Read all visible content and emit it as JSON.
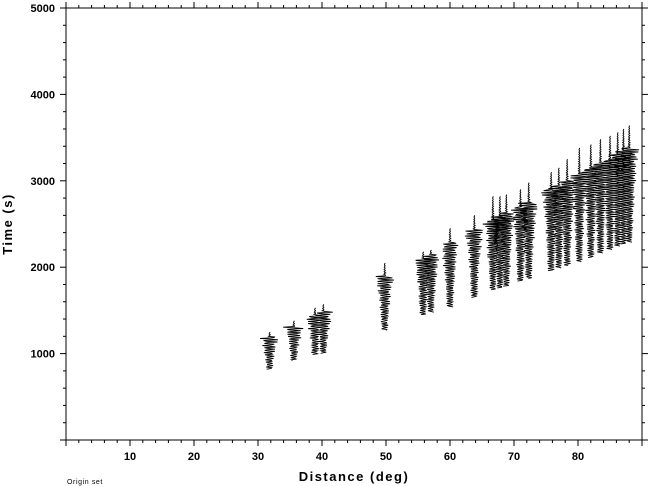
{
  "chart_data": {
    "type": "line",
    "subtype": "seismic record section",
    "xlabel": "Distance (deg)",
    "ylabel": "Time (s)",
    "xlim": [
      0,
      90
    ],
    "ylim": [
      0,
      5000
    ],
    "x_ticks": [
      10,
      20,
      30,
      40,
      50,
      60,
      70,
      80
    ],
    "x_tick_labels": [
      "10",
      "20",
      "30",
      "40",
      "50",
      "60",
      "70",
      "80"
    ],
    "y_ticks": [
      1000,
      2000,
      3000,
      4000,
      5000
    ],
    "y_tick_labels": [
      "1000",
      "2000",
      "3000",
      "4000",
      "5000"
    ],
    "grid": false,
    "footnote": "Origin set",
    "trace_color": "#000000",
    "traces": [
      {
        "distance": 31.8,
        "t_start": 820,
        "t_end": 1250,
        "onset": 1200
      },
      {
        "distance": 35.6,
        "t_start": 920,
        "t_end": 1380,
        "onset": 1310
      },
      {
        "distance": 38.9,
        "t_start": 990,
        "t_end": 1530,
        "onset": 1450
      },
      {
        "distance": 40.2,
        "t_start": 1000,
        "t_end": 1570,
        "onset": 1490
      },
      {
        "distance": 49.8,
        "t_start": 1270,
        "t_end": 2050,
        "onset": 1900
      },
      {
        "distance": 55.8,
        "t_start": 1450,
        "t_end": 2180,
        "onset": 2100
      },
      {
        "distance": 57.0,
        "t_start": 1480,
        "t_end": 2200,
        "onset": 2150
      },
      {
        "distance": 60.0,
        "t_start": 1540,
        "t_end": 2450,
        "onset": 2290
      },
      {
        "distance": 63.8,
        "t_start": 1650,
        "t_end": 2600,
        "onset": 2430
      },
      {
        "distance": 66.7,
        "t_start": 1740,
        "t_end": 2820,
        "onset": 2550
      },
      {
        "distance": 67.8,
        "t_start": 1760,
        "t_end": 2820,
        "onset": 2590
      },
      {
        "distance": 68.8,
        "t_start": 1780,
        "t_end": 2840,
        "onset": 2630
      },
      {
        "distance": 71.0,
        "t_start": 1840,
        "t_end": 2900,
        "onset": 2700
      },
      {
        "distance": 72.3,
        "t_start": 1870,
        "t_end": 2980,
        "onset": 2750
      },
      {
        "distance": 75.8,
        "t_start": 1960,
        "t_end": 3100,
        "onset": 2900
      },
      {
        "distance": 77.0,
        "t_start": 1990,
        "t_end": 3150,
        "onset": 2940
      },
      {
        "distance": 78.3,
        "t_start": 2020,
        "t_end": 3250,
        "onset": 3000
      },
      {
        "distance": 80.2,
        "t_start": 2060,
        "t_end": 3380,
        "onset": 3080
      },
      {
        "distance": 82.0,
        "t_start": 2110,
        "t_end": 3420,
        "onset": 3150
      },
      {
        "distance": 83.5,
        "t_start": 2160,
        "t_end": 3480,
        "onset": 3200
      },
      {
        "distance": 85.0,
        "t_start": 2200,
        "t_end": 3520,
        "onset": 3250
      },
      {
        "distance": 86.2,
        "t_start": 2240,
        "t_end": 3560,
        "onset": 3300
      },
      {
        "distance": 87.1,
        "t_start": 2270,
        "t_end": 3600,
        "onset": 3340
      },
      {
        "distance": 88.0,
        "t_start": 2290,
        "t_end": 3640,
        "onset": 3380
      }
    ]
  }
}
